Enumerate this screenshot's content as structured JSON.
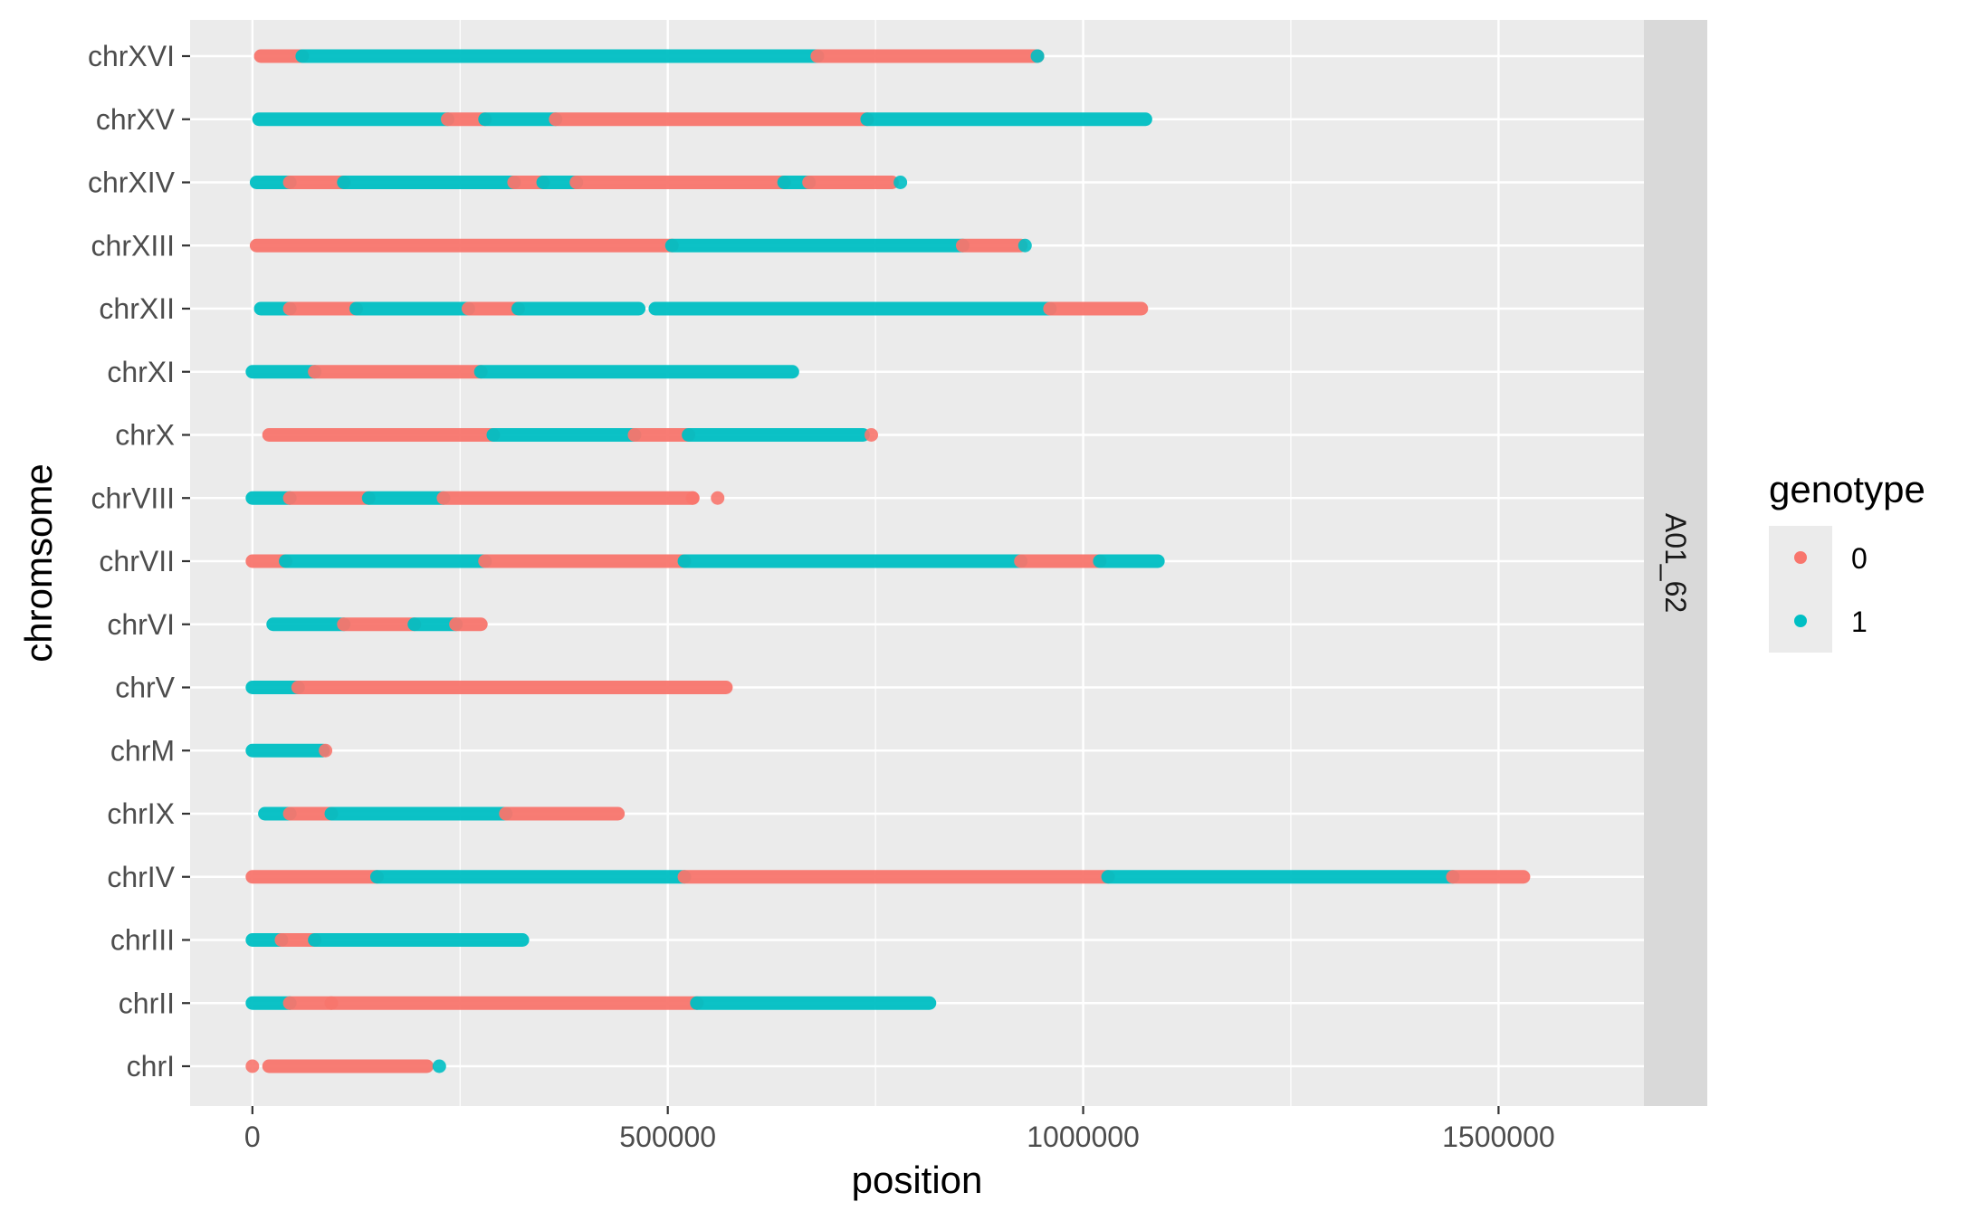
{
  "chart_data": {
    "type": "scatter",
    "xlabel": "position",
    "ylabel": "chromsome",
    "xlim": [
      -75000,
      1675000
    ],
    "x_ticks": [
      0,
      500000,
      1000000,
      1500000
    ],
    "x_tick_labels": [
      "0",
      "500000",
      "1000000",
      "1500000"
    ],
    "categories": [
      "chrI",
      "chrII",
      "chrIII",
      "chrIV",
      "chrIX",
      "chrM",
      "chrV",
      "chrVI",
      "chrVII",
      "chrVIII",
      "chrX",
      "chrXI",
      "chrXII",
      "chrXIII",
      "chrXIV",
      "chrXV",
      "chrXVI"
    ],
    "facet_label": "A01_62",
    "grid": true,
    "legend": {
      "title": "genotype",
      "position": "right",
      "entries": [
        {
          "label": "0",
          "color": "#F8766D"
        },
        {
          "label": "1",
          "color": "#00BFC4"
        }
      ]
    },
    "colors": {
      "0": "#F8766D",
      "1": "#00BFC4",
      "panel": "#EBEBEB",
      "strip": "#D9D9D9"
    },
    "series": [
      {
        "chromosome": "chrXVI",
        "segments": [
          [
            10000,
            60000,
            0
          ],
          [
            60000,
            680000,
            1
          ],
          [
            680000,
            945000,
            0
          ]
        ],
        "isolated": [
          [
            945000,
            1
          ]
        ]
      },
      {
        "chromosome": "chrXV",
        "segments": [
          [
            8000,
            235000,
            1
          ],
          [
            235000,
            280000,
            0
          ],
          [
            280000,
            365000,
            1
          ],
          [
            365000,
            740000,
            0
          ],
          [
            740000,
            1075000,
            1
          ]
        ],
        "isolated": []
      },
      {
        "chromosome": "chrXIV",
        "segments": [
          [
            5000,
            45000,
            1
          ],
          [
            45000,
            110000,
            0
          ],
          [
            110000,
            315000,
            1
          ],
          [
            315000,
            350000,
            0
          ],
          [
            350000,
            390000,
            1
          ],
          [
            390000,
            640000,
            0
          ],
          [
            640000,
            670000,
            1
          ],
          [
            670000,
            770000,
            0
          ]
        ],
        "isolated": [
          [
            780000,
            1
          ]
        ]
      },
      {
        "chromosome": "chrXIII",
        "segments": [
          [
            5000,
            505000,
            0
          ],
          [
            505000,
            855000,
            1
          ],
          [
            855000,
            925000,
            0
          ]
        ],
        "isolated": [
          [
            930000,
            1
          ]
        ]
      },
      {
        "chromosome": "chrXII",
        "segments": [
          [
            10000,
            45000,
            1
          ],
          [
            45000,
            125000,
            0
          ],
          [
            125000,
            260000,
            1
          ],
          [
            260000,
            320000,
            0
          ],
          [
            320000,
            465000,
            1
          ],
          [
            485000,
            960000,
            1
          ],
          [
            960000,
            1070000,
            0
          ]
        ],
        "isolated": []
      },
      {
        "chromosome": "chrXI",
        "segments": [
          [
            0,
            75000,
            1
          ],
          [
            75000,
            275000,
            0
          ],
          [
            275000,
            650000,
            1
          ]
        ],
        "isolated": []
      },
      {
        "chromosome": "chrX",
        "segments": [
          [
            20000,
            290000,
            0
          ],
          [
            290000,
            460000,
            1
          ],
          [
            460000,
            525000,
            0
          ],
          [
            525000,
            735000,
            1
          ]
        ],
        "isolated": [
          [
            745000,
            0
          ]
        ]
      },
      {
        "chromosome": "chrVIII",
        "segments": [
          [
            0,
            45000,
            1
          ],
          [
            45000,
            140000,
            0
          ],
          [
            140000,
            230000,
            1
          ],
          [
            230000,
            530000,
            0
          ]
        ],
        "isolated": [
          [
            560000,
            0
          ],
          [
            530000,
            0
          ]
        ]
      },
      {
        "chromosome": "chrVII",
        "segments": [
          [
            0,
            40000,
            0
          ],
          [
            40000,
            280000,
            1
          ],
          [
            280000,
            520000,
            0
          ],
          [
            520000,
            925000,
            1
          ],
          [
            925000,
            1020000,
            0
          ],
          [
            1020000,
            1090000,
            1
          ]
        ],
        "isolated": []
      },
      {
        "chromosome": "chrVI",
        "segments": [
          [
            25000,
            110000,
            1
          ],
          [
            110000,
            195000,
            0
          ],
          [
            195000,
            245000,
            1
          ],
          [
            245000,
            275000,
            0
          ]
        ],
        "isolated": []
      },
      {
        "chromosome": "chrV",
        "segments": [
          [
            0,
            55000,
            1
          ],
          [
            55000,
            570000,
            0
          ]
        ],
        "isolated": []
      },
      {
        "chromosome": "chrM",
        "segments": [
          [
            0,
            85000,
            1
          ]
        ],
        "isolated": [
          [
            88000,
            0
          ]
        ]
      },
      {
        "chromosome": "chrIX",
        "segments": [
          [
            15000,
            45000,
            1
          ],
          [
            45000,
            95000,
            0
          ],
          [
            95000,
            305000,
            1
          ],
          [
            305000,
            440000,
            0
          ]
        ],
        "isolated": []
      },
      {
        "chromosome": "chrIV",
        "segments": [
          [
            0,
            150000,
            0
          ],
          [
            150000,
            520000,
            1
          ],
          [
            520000,
            1030000,
            0
          ],
          [
            1030000,
            1445000,
            1
          ],
          [
            1445000,
            1530000,
            0
          ]
        ],
        "isolated": []
      },
      {
        "chromosome": "chrIII",
        "segments": [
          [
            0,
            35000,
            1
          ],
          [
            35000,
            75000,
            0
          ],
          [
            75000,
            325000,
            1
          ]
        ],
        "isolated": []
      },
      {
        "chromosome": "chrII",
        "segments": [
          [
            0,
            45000,
            1
          ],
          [
            45000,
            95000,
            0
          ],
          [
            95000,
            535000,
            0
          ],
          [
            535000,
            815000,
            1
          ]
        ],
        "isolated": []
      },
      {
        "chromosome": "chrI",
        "segments": [
          [
            20000,
            210000,
            0
          ]
        ],
        "isolated": [
          [
            0,
            0
          ],
          [
            225000,
            1
          ]
        ]
      }
    ]
  }
}
